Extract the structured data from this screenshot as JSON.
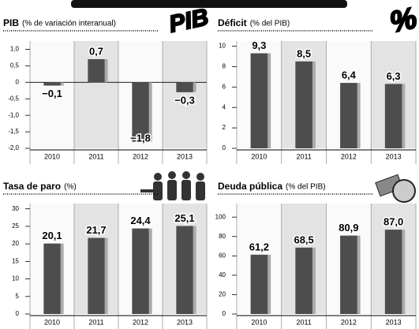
{
  "chart_data": [
    {
      "type": "bar",
      "title": "PIB",
      "subtitle": "(% de variación interanual)",
      "icon_text": "PIB",
      "categories": [
        "2010",
        "2011",
        "2012",
        "2013"
      ],
      "values": [
        -0.1,
        0.7,
        -1.8,
        -0.3
      ],
      "value_labels": [
        "−0,1",
        "0,7",
        "−1,8",
        "−0,3"
      ],
      "color": "#4d4d4d",
      "ylim": [
        -2,
        1.25
      ],
      "yticks": [
        {
          "value": 1,
          "label": "1,0"
        },
        {
          "value": 0.5,
          "label": "0,5"
        },
        0,
        {
          "value": -0.5,
          "label": "-0,5"
        },
        {
          "value": -1,
          "label": "-1,0"
        },
        {
          "value": -1.5,
          "label": "-1,5"
        },
        {
          "value": -2,
          "label": "-2,0"
        }
      ]
    },
    {
      "type": "bar",
      "title": "Déficit",
      "subtitle": "(% del PIB)",
      "icon_text": "%",
      "categories": [
        "2010",
        "2011",
        "2012",
        "2013"
      ],
      "values": [
        9.3,
        8.5,
        6.4,
        6.3
      ],
      "value_labels": [
        "9,3",
        "8,5",
        "6,4",
        "6,3"
      ],
      "color": "#4d4d4d",
      "ylim": [
        0,
        10.5
      ],
      "yticks": [
        0,
        2,
        4,
        6,
        8,
        10
      ]
    },
    {
      "type": "bar",
      "title": "Tasa de paro",
      "subtitle": "(%)",
      "categories": [
        "2010",
        "2011",
        "2012",
        "2013"
      ],
      "values": [
        20.1,
        21.7,
        24.4,
        25.1
      ],
      "value_labels": [
        "20,1",
        "21,7",
        "24,4",
        "25,1"
      ],
      "color": "#4d4d4d",
      "ylim": [
        0,
        31.5
      ],
      "yticks": [
        0,
        5,
        10,
        15,
        20,
        25,
        30
      ]
    },
    {
      "type": "bar",
      "title": "Deuda pública",
      "subtitle": "(% del PIB)",
      "categories": [
        "2010",
        "2011",
        "2012",
        "2013"
      ],
      "values": [
        61.2,
        68.5,
        80.9,
        87.0
      ],
      "value_labels": [
        "61,2",
        "68,5",
        "80,9",
        "87,0"
      ],
      "color": "#4d4d4d",
      "ylim": [
        0,
        114
      ],
      "yticks": [
        0,
        20,
        40,
        60,
        80,
        100
      ]
    }
  ]
}
